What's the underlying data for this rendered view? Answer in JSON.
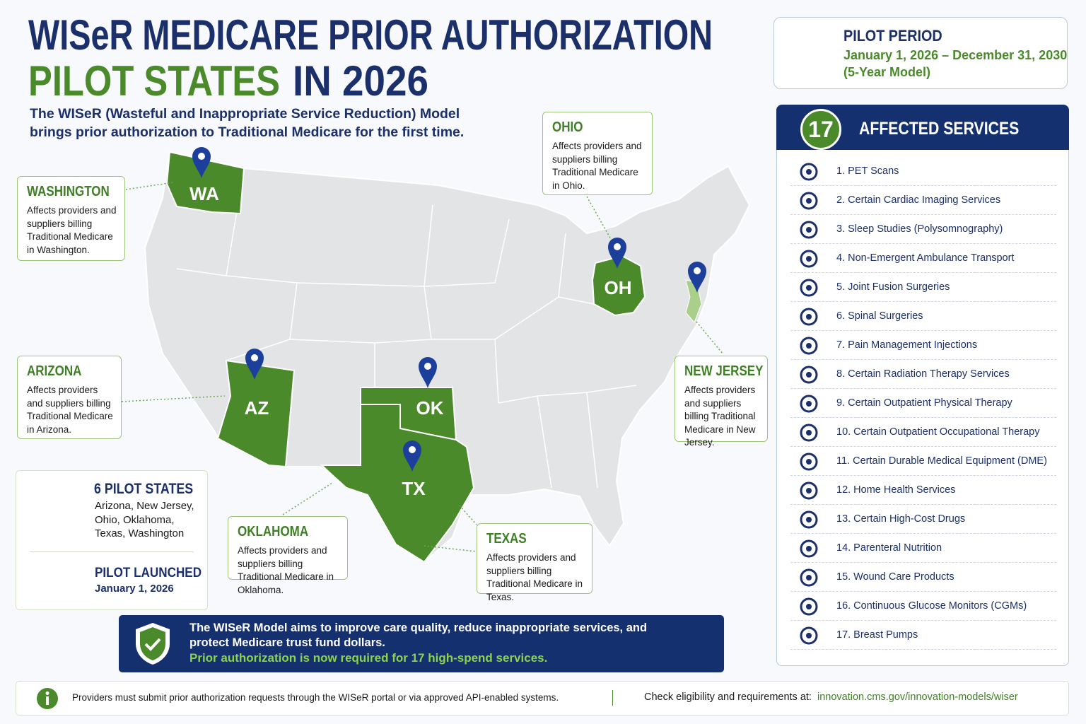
{
  "header": {
    "title_line1": "WISeR MEDICARE PRIOR AUTHORIZATION",
    "title_line2_green": "PILOT STATES",
    "title_line2_navy": "IN 2026",
    "subtitle": [
      "The WISeR (Wasteful and Inappropriate Service Reduction) Model",
      "brings prior authorization to Traditional Medicare for the first time."
    ]
  },
  "states": [
    {
      "name": "WASHINGTON",
      "abbr": "WA",
      "description": "Affects providers and suppliers billing Traditional Medicare in Washington."
    },
    {
      "name": "OHIO",
      "abbr": "OH",
      "description": "Affects providers and suppliers billing Traditional Medicare in Ohio."
    },
    {
      "name": "ARIZONA",
      "abbr": "AZ",
      "description": "Affects providers and suppliers billing Traditional Medicare in Arizona."
    },
    {
      "name": "NEW JERSEY",
      "description": "Affects providers and suppliers billing Traditional Medicare in New Jersey."
    },
    {
      "name": "OKLAHOMA",
      "abbr": "OK",
      "description": "Affects providers and suppliers billing Traditional Medicare in Oklahoma."
    },
    {
      "name": "TEXAS",
      "abbr": "TX",
      "description": "Affects providers and suppliers billing Traditional Medicare in Texas."
    }
  ],
  "summary": {
    "count": "6",
    "label": "PILOT STATES",
    "list": "Arizona, New Jersey, Ohio, Oklahoma, Texas, Washington",
    "launched_label": "PILOT LAUNCHED",
    "launched_date": "January 1, 2026"
  },
  "pilot_period": {
    "label": "PILOT PERIOD",
    "dates": "January 1, 2026 – December 31, 2030",
    "note": "(5-Year Model)"
  },
  "services": {
    "count": "17",
    "title": "AFFECTED SERVICES",
    "items": [
      "1. PET Scans",
      "2. Certain Cardiac Imaging Services",
      "3. Sleep Studies (Polysomnography)",
      "4. Non-Emergent Ambulance Transport",
      "5. Joint Fusion Surgeries",
      "6. Spinal Surgeries",
      "7. Pain Management Injections",
      "8. Certain Radiation Therapy Services",
      "9. Certain Outpatient Physical Therapy",
      "10. Certain Outpatient Occupational Therapy",
      "11. Certain Durable Medical Equipment (DME)",
      "12. Home Health Services",
      "13. Certain High-Cost Drugs",
      "14. Parenteral Nutrition",
      "15. Wound Care Products",
      "16. Continuous Glucose Monitors (CGMs)",
      "17. Breast Pumps"
    ]
  },
  "banner": {
    "text": "The WISeR Model aims to improve care quality, reduce inappropriate services, and protect Medicare trust fund dollars.",
    "highlight": "Prior authorization is now required for 17 high-spend services."
  },
  "footer": {
    "note": "Providers must submit prior authorization requests through the WISeR portal or via approved API-enabled systems.",
    "check_label": "Check eligibility and requirements at:",
    "url": "innovation.cms.gov/innovation-models/wiser"
  }
}
